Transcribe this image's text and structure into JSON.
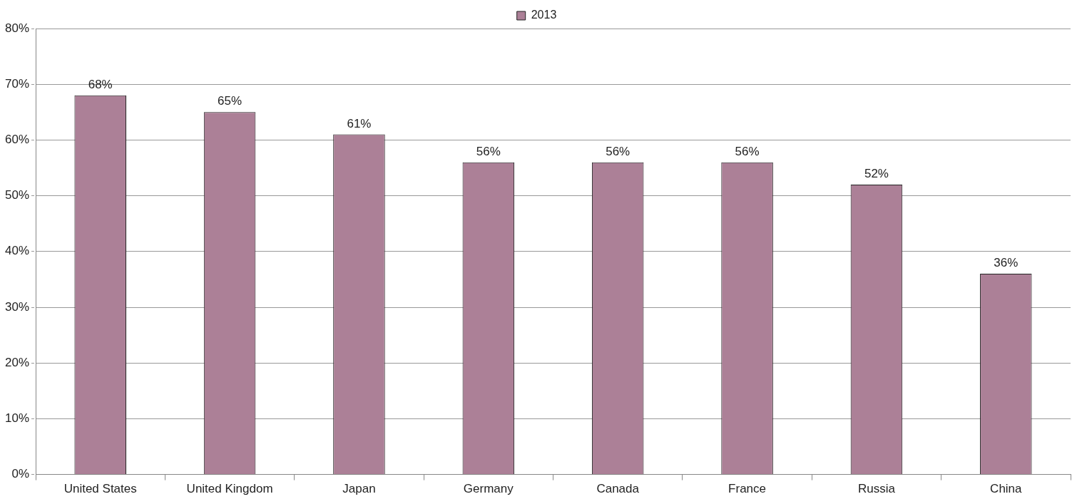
{
  "chart_data": {
    "type": "bar",
    "categories": [
      "United States",
      "United Kingdom",
      "Japan",
      "Germany",
      "Canada",
      "France",
      "Russia",
      "China"
    ],
    "series": [
      {
        "name": "2013",
        "color": "#ac8097",
        "values": [
          68,
          65,
          61,
          56,
          56,
          56,
          52,
          36
        ],
        "value_labels": [
          "68%",
          "65%",
          "61%",
          "56%",
          "56%",
          "56%",
          "52%",
          "36%"
        ]
      }
    ],
    "ylim": [
      0,
      80
    ],
    "yticks": [
      {
        "value": 0,
        "label": "0%"
      },
      {
        "value": 10,
        "label": "10%"
      },
      {
        "value": 20,
        "label": "20%"
      },
      {
        "value": 30,
        "label": "30%"
      },
      {
        "value": 40,
        "label": "40%"
      },
      {
        "value": 50,
        "label": "50%"
      },
      {
        "value": 60,
        "label": "60%"
      },
      {
        "value": 70,
        "label": "70%"
      },
      {
        "value": 80,
        "label": "80%"
      }
    ],
    "grid": "y",
    "legend": "top"
  }
}
